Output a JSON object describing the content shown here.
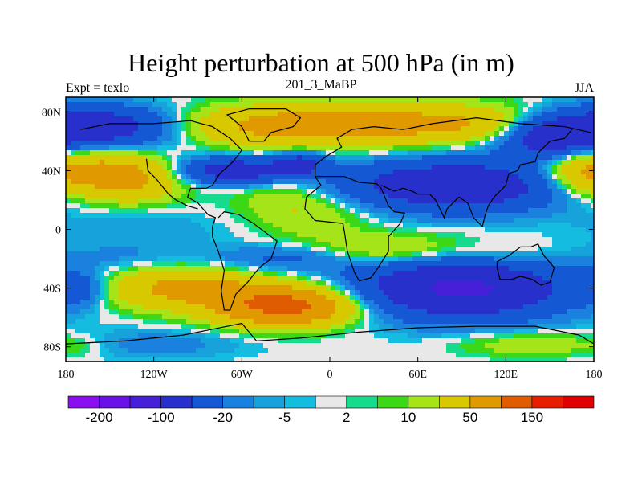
{
  "chart_data": {
    "type": "heatmap",
    "title": "Height perturbation at 500 hPa (in m)",
    "left_label": "Expt = texlo",
    "center_label": "201_3_MaBP",
    "right_label": "JJA",
    "x_ticks": [
      "180",
      "120W",
      "60W",
      "0",
      "60E",
      "120E",
      "180"
    ],
    "x_tick_values": [
      -180,
      -120,
      -60,
      0,
      60,
      120,
      180
    ],
    "y_ticks": [
      "80N",
      "40N",
      "0",
      "40S",
      "80S"
    ],
    "y_tick_values": [
      80,
      40,
      0,
      -40,
      -80
    ],
    "xlim": [
      -180,
      180
    ],
    "ylim": [
      -90,
      90
    ],
    "colorbar": {
      "levels": [
        -200,
        -150,
        -100,
        -50,
        -20,
        -10,
        -5,
        -2,
        2,
        5,
        10,
        20,
        50,
        100,
        150,
        200
      ],
      "labels": [
        "-200",
        "-100",
        "-20",
        "-5",
        "2",
        "10",
        "50",
        "150"
      ],
      "label_levels": [
        -200,
        -100,
        -20,
        -5,
        2,
        10,
        50,
        150
      ],
      "colors": [
        "#8a0ef0",
        "#6a12e6",
        "#4520d8",
        "#2830cc",
        "#1558d4",
        "#1a82de",
        "#18a2dc",
        "#14bce0",
        "#e8e8e8",
        "#16da8c",
        "#3cd818",
        "#a6e41a",
        "#d8c800",
        "#e09a00",
        "#e05c00",
        "#e81e00",
        "#e00000"
      ]
    },
    "field_blobs": [
      {
        "lon": -160,
        "lat": 70,
        "rx": 55,
        "ry": 14,
        "v": -85
      },
      {
        "lon": -175,
        "lat": 40,
        "rx": 40,
        "ry": 16,
        "v": 45
      },
      {
        "lon": -135,
        "lat": 35,
        "rx": 35,
        "ry": 16,
        "v": 55
      },
      {
        "lon": -110,
        "lat": 55,
        "rx": 35,
        "ry": 10,
        "v": -5
      },
      {
        "lon": -45,
        "lat": 70,
        "rx": 75,
        "ry": 14,
        "v": 45
      },
      {
        "lon": 20,
        "lat": 72,
        "rx": 70,
        "ry": 14,
        "v": 45
      },
      {
        "lon": 100,
        "lat": 72,
        "rx": 60,
        "ry": 13,
        "v": 40
      },
      {
        "lon": 150,
        "lat": 62,
        "rx": 35,
        "ry": 14,
        "v": -70
      },
      {
        "lon": -65,
        "lat": 40,
        "rx": 38,
        "ry": 9,
        "v": -80
      },
      {
        "lon": -20,
        "lat": 45,
        "rx": 18,
        "ry": 8,
        "v": -60
      },
      {
        "lon": 85,
        "lat": 30,
        "rx": 75,
        "ry": 17,
        "v": -90
      },
      {
        "lon": 170,
        "lat": 38,
        "rx": 25,
        "ry": 15,
        "v": 25
      },
      {
        "lon": -35,
        "lat": 25,
        "rx": 35,
        "ry": 15,
        "v": 15
      },
      {
        "lon": -10,
        "lat": 10,
        "rx": 40,
        "ry": 16,
        "v": 20
      },
      {
        "lon": -130,
        "lat": 0,
        "rx": 60,
        "ry": 16,
        "v": -10
      },
      {
        "lon": 70,
        "lat": -5,
        "rx": 70,
        "ry": 8,
        "v": 5
      },
      {
        "lon": 40,
        "lat": -15,
        "rx": 50,
        "ry": 10,
        "v": 30
      },
      {
        "lon": 120,
        "lat": -18,
        "rx": 45,
        "ry": 9,
        "v": 15
      },
      {
        "lon": -140,
        "lat": -20,
        "rx": 55,
        "ry": 9,
        "v": -10
      },
      {
        "lon": -30,
        "lat": -20,
        "rx": 50,
        "ry": 9,
        "v": -25
      },
      {
        "lon": -100,
        "lat": -40,
        "rx": 55,
        "ry": 14,
        "v": 60
      },
      {
        "lon": -30,
        "lat": -52,
        "rx": 45,
        "ry": 13,
        "v": 120
      },
      {
        "lon": -170,
        "lat": -40,
        "rx": 20,
        "ry": 12,
        "v": -30
      },
      {
        "lon": 90,
        "lat": -40,
        "rx": 70,
        "ry": 20,
        "v": -110
      },
      {
        "lon": -120,
        "lat": -78,
        "rx": 60,
        "ry": 10,
        "v": -15
      },
      {
        "lon": 140,
        "lat": -78,
        "rx": 50,
        "ry": 8,
        "v": 20
      },
      {
        "lon": -170,
        "lat": -80,
        "rx": 20,
        "ry": 7,
        "v": 7
      }
    ]
  }
}
